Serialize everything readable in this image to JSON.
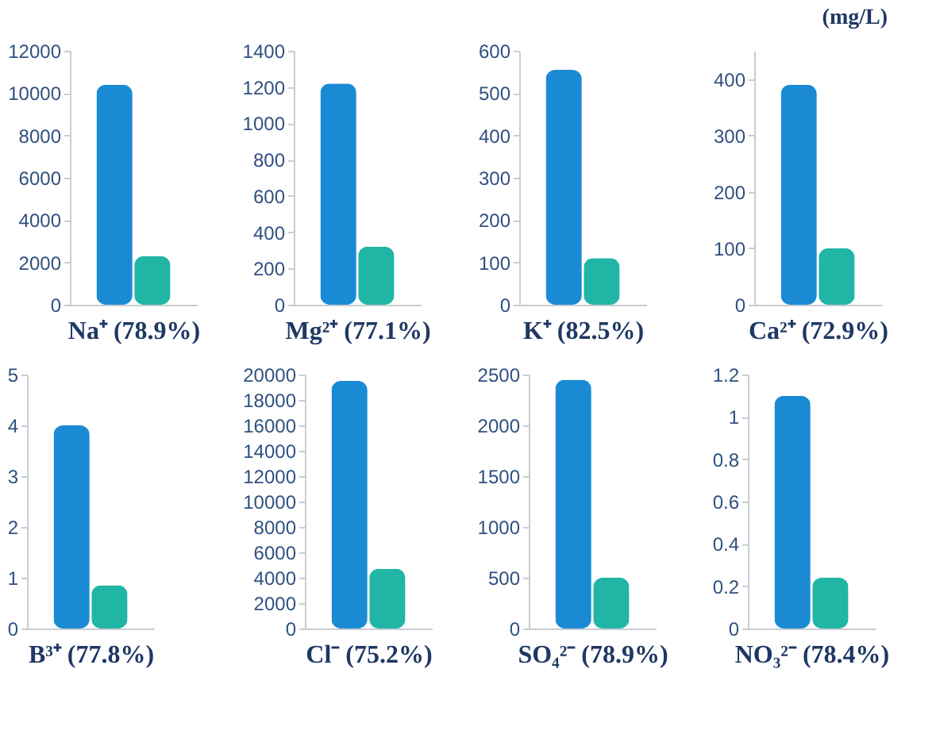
{
  "chart_data": [
    {
      "type": "bar",
      "xlabel": "Na⁺ (78.9%)",
      "categories": [
        null,
        null
      ],
      "values": [
        10400,
        2300
      ],
      "colors": [
        "#1a8ad4",
        "#20b5a5"
      ],
      "ylim": [
        0,
        12000
      ],
      "yticks": [
        0,
        2000,
        4000,
        6000,
        8000,
        10000,
        12000
      ],
      "grid": false
    },
    {
      "type": "bar",
      "xlabel": "Mg²⁺ (77.1%)",
      "categories": [
        null,
        null
      ],
      "values": [
        1220,
        320
      ],
      "colors": [
        "#1a8ad4",
        "#20b5a5"
      ],
      "ylim": [
        0,
        1400
      ],
      "yticks": [
        0,
        200,
        400,
        600,
        800,
        1000,
        1200,
        1400
      ],
      "grid": false
    },
    {
      "type": "bar",
      "xlabel": "K⁺ (82.5%)",
      "categories": [
        null,
        null
      ],
      "values": [
        555,
        110
      ],
      "colors": [
        "#1a8ad4",
        "#20b5a5"
      ],
      "ylim": [
        0,
        600
      ],
      "yticks": [
        0,
        100,
        200,
        300,
        400,
        500,
        600
      ],
      "grid": false
    },
    {
      "type": "bar",
      "xlabel": "Ca²⁺ (72.9%)",
      "annotations": [
        "(mg/L)"
      ],
      "categories": [
        null,
        null
      ],
      "values": [
        390,
        100
      ],
      "colors": [
        "#1a8ad4",
        "#20b5a5"
      ],
      "ylim": [
        0,
        450
      ],
      "yticks": [
        0,
        100,
        200,
        300,
        400
      ],
      "grid": false
    },
    {
      "type": "bar",
      "xlabel": "B³⁺ (77.8%)",
      "categories": [
        null,
        null
      ],
      "values": [
        4.0,
        0.85
      ],
      "colors": [
        "#1a8ad4",
        "#20b5a5"
      ],
      "ylim": [
        0,
        5
      ],
      "yticks": [
        0,
        1,
        2,
        3,
        4,
        5
      ],
      "grid": false
    },
    {
      "type": "bar",
      "xlabel": "Cl⁻ (75.2%)",
      "categories": [
        null,
        null
      ],
      "values": [
        19500,
        4700
      ],
      "colors": [
        "#1a8ad4",
        "#20b5a5"
      ],
      "ylim": [
        0,
        20000
      ],
      "yticks": [
        0,
        2000,
        4000,
        6000,
        8000,
        10000,
        12000,
        14000,
        16000,
        18000,
        20000
      ],
      "grid": false
    },
    {
      "type": "bar",
      "xlabel": "SO₄²⁻ (78.9%)",
      "categories": [
        null,
        null
      ],
      "values": [
        2450,
        500
      ],
      "colors": [
        "#1a8ad4",
        "#20b5a5"
      ],
      "ylim": [
        0,
        2500
      ],
      "yticks": [
        0,
        500,
        1000,
        1500,
        2000,
        2500
      ],
      "grid": false
    },
    {
      "type": "bar",
      "xlabel": "NO₃²⁻ (78.4%)",
      "categories": [
        null,
        null
      ],
      "values": [
        1.1,
        0.24
      ],
      "colors": [
        "#1a8ad4",
        "#20b5a5"
      ],
      "ylim": [
        0,
        1.2
      ],
      "yticks": [
        0,
        0.2,
        0.4,
        0.6,
        0.8,
        1,
        1.2
      ],
      "grid": false
    }
  ]
}
